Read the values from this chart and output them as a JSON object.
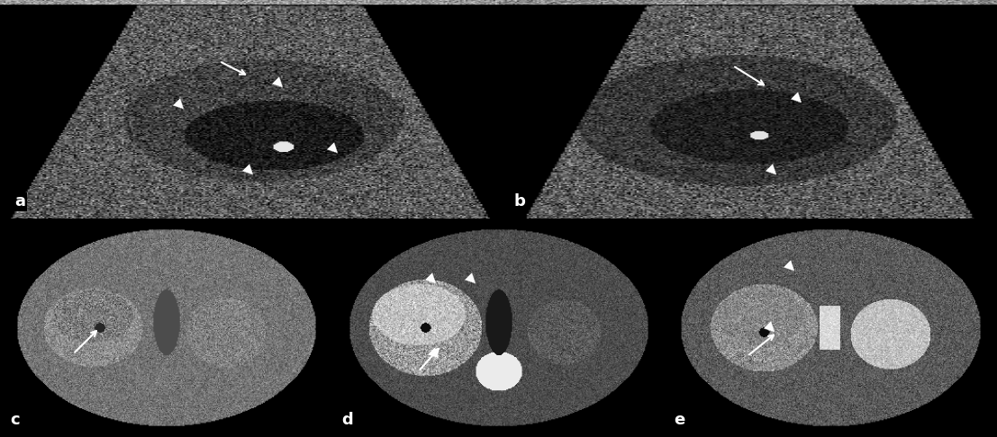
{
  "background_color": "#000000",
  "label_color": "#ffffff",
  "label_fontsize": 13,
  "label_fontweight": "bold",
  "panels": [
    "a",
    "b",
    "c",
    "d",
    "e"
  ],
  "annotation_color": "#ffffff"
}
